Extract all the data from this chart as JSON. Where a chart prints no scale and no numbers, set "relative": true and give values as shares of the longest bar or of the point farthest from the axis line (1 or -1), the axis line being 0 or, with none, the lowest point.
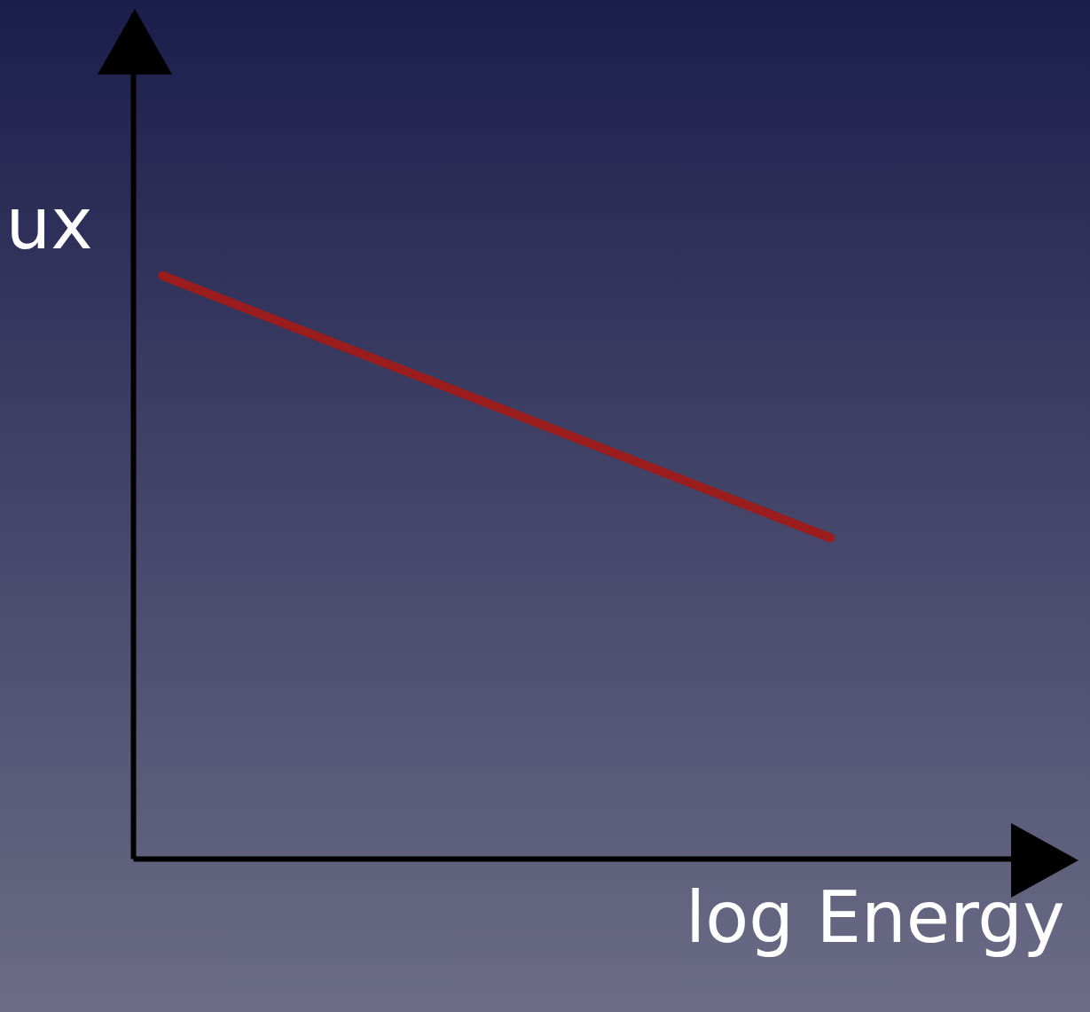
{
  "chart_data": {
    "type": "line",
    "relative": true,
    "xlabel": "log Energy",
    "ylabel": "ux",
    "categories": [
      null,
      null
    ],
    "series": [
      {
        "color": "#9b1c1c",
        "values": [
          1,
          0.55
        ]
      }
    ],
    "grid": false,
    "marker": "none",
    "line_style": "solid"
  }
}
